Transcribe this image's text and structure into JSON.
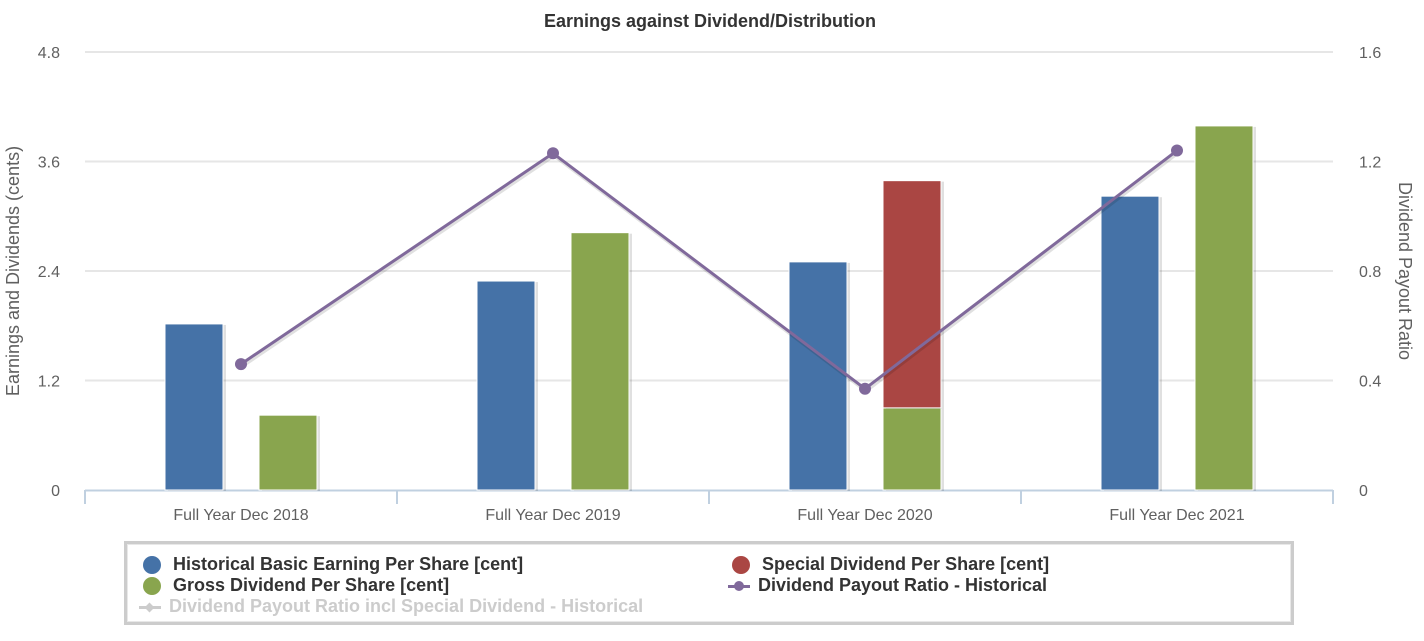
{
  "chart_data": {
    "type": "bar",
    "title": "Earnings against Dividend/Distribution",
    "categories": [
      "Full Year Dec 2018",
      "Full Year Dec 2019",
      "Full Year Dec 2020",
      "Full Year Dec 2021"
    ],
    "y_left": {
      "label": "Earnings and Dividends (cents)",
      "range": [
        0,
        4.8
      ],
      "ticks": [
        "0",
        "1.2",
        "2.4",
        "3.6",
        "4.8"
      ]
    },
    "y_right": {
      "label": "Dividend Payout Ratio",
      "range": [
        0,
        1.6
      ],
      "ticks": [
        "0",
        "0.4",
        "0.8",
        "1.2",
        "1.6"
      ]
    },
    "grid": true,
    "legend_position": "bottom",
    "series": [
      {
        "name": "Historical Basic Earning Per Share [cent]",
        "type": "bar",
        "axis": "left",
        "color": "#4572a7",
        "values": [
          1.82,
          2.29,
          2.5,
          3.22
        ]
      },
      {
        "name": "Gross Dividend Per Share [cent]",
        "type": "bar",
        "axis": "left",
        "stack": "dividend",
        "color": "#89a54e",
        "values": [
          0.82,
          2.82,
          0.9,
          3.99
        ]
      },
      {
        "name": "Special Dividend Per Share [cent]",
        "type": "bar",
        "axis": "left",
        "stack": "dividend",
        "color": "#aa4643",
        "values": [
          0,
          0,
          2.49,
          0
        ]
      },
      {
        "name": "Dividend Payout Ratio - Historical",
        "type": "line",
        "axis": "right",
        "color": "#80699b",
        "values": [
          0.46,
          1.23,
          0.37,
          1.24
        ]
      },
      {
        "name": "Dividend Payout Ratio incl Special Dividend - Historical",
        "type": "line",
        "axis": "right",
        "color": "#cccccc",
        "visible": false,
        "values": []
      }
    ]
  },
  "legend": {
    "items": [
      {
        "label": "Historical Basic Earning Per Share [cent]",
        "color": "#4572a7",
        "symbol": "circle"
      },
      {
        "label": "Special Dividend Per Share [cent]",
        "color": "#aa4643",
        "symbol": "circle"
      },
      {
        "label": "Gross Dividend Per Share [cent]",
        "color": "#89a54e",
        "symbol": "circle"
      },
      {
        "label": "Dividend Payout Ratio - Historical",
        "color": "#80699b",
        "symbol": "line-circle"
      },
      {
        "label": "Dividend Payout Ratio incl Special Dividend - Historical",
        "color": "#cccccc",
        "symbol": "line-diamond"
      }
    ]
  }
}
